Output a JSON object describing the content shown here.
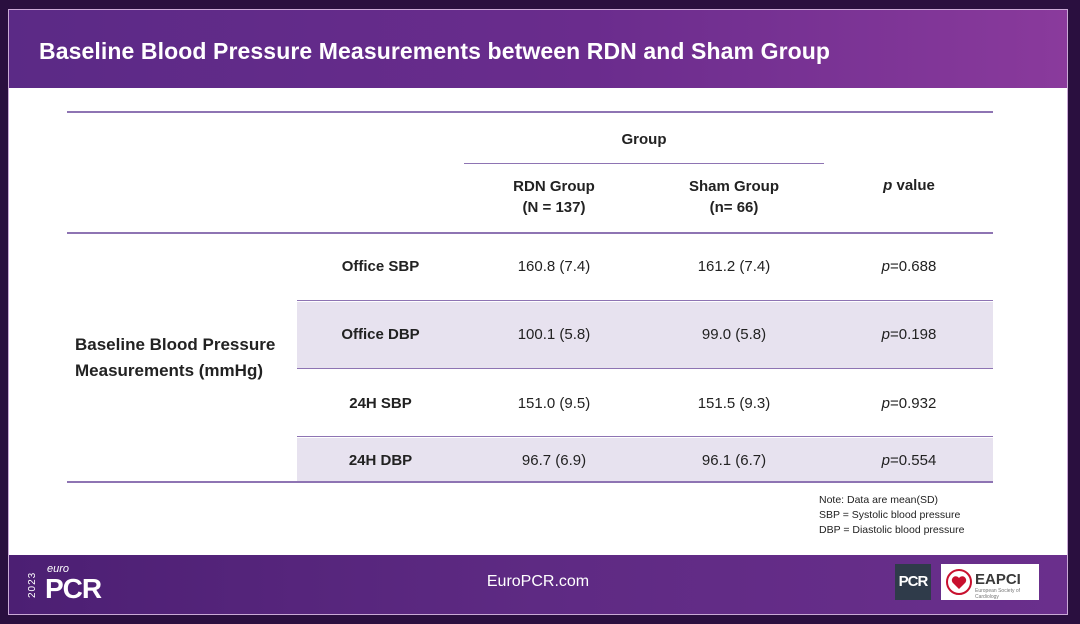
{
  "title": "Baseline Blood Pressure Measurements between RDN and Sham Group",
  "table": {
    "group_header": "Group",
    "col_rdn_line1": "RDN Group",
    "col_rdn_line2": "(N = 137)",
    "col_sham_line1": "Sham Group",
    "col_sham_line2": "(n= 66)",
    "col_p_italic": "p",
    "col_p_rest": " value",
    "row_group_label": "Baseline Blood Pressure Measurements (mmHg)",
    "rows": [
      {
        "label": "Office SBP",
        "rdn": "160.8 (7.4)",
        "sham": "161.2 (7.4)",
        "p_italic": "p",
        "p_rest": "=0.688"
      },
      {
        "label": "Office DBP",
        "rdn": "100.1 (5.8)",
        "sham": "99.0 (5.8)",
        "p_italic": "p",
        "p_rest": "=0.198"
      },
      {
        "label": "24H SBP",
        "rdn": "151.0 (9.5)",
        "sham": "151.5 (9.3)",
        "p_italic": "p",
        "p_rest": "=0.932"
      },
      {
        "label": "24H DBP",
        "rdn": "96.7 (6.9)",
        "sham": "96.1 (6.7)",
        "p_italic": "p",
        "p_rest": "=0.554"
      }
    ]
  },
  "notes": [
    "Note: Data are mean(SD)",
    "SBP = Systolic blood pressure",
    "DBP = Diastolic blood pressure"
  ],
  "footer": {
    "url": "EuroPCR.com",
    "logo_year": "2023",
    "logo_euro": "euro",
    "logo_pcr": "PCR",
    "badge_pcr": "PCR",
    "badge_eapci": "EAPCI",
    "badge_eapci_sub": "European Society of Cardiology"
  },
  "colors": {
    "title_bar": "#5b2a86",
    "rule": "#8e74b3",
    "band": "#e7e2ef",
    "heart": "#c8102e"
  }
}
